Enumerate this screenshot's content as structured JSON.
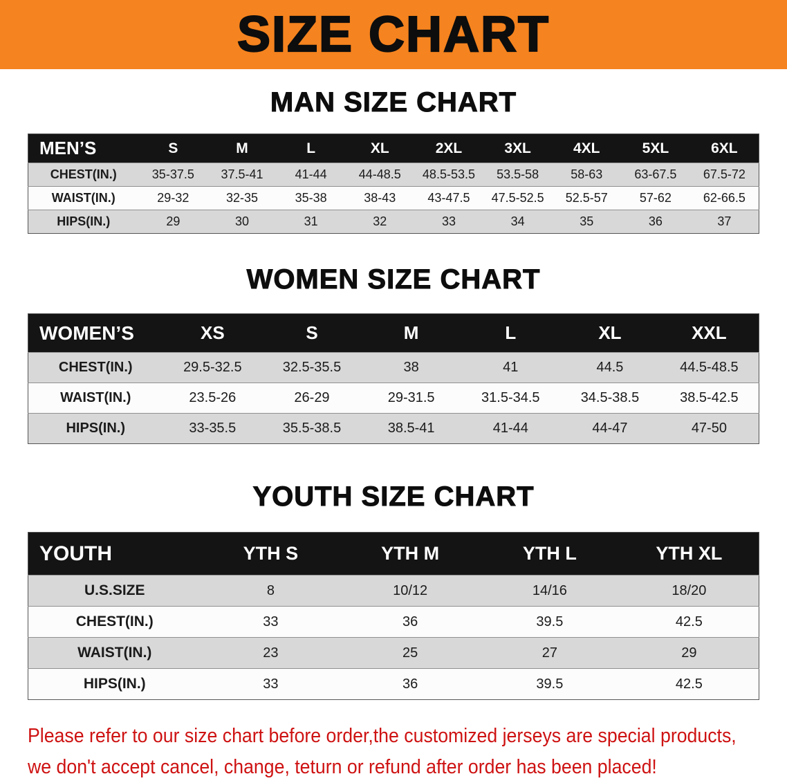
{
  "banner": {
    "title": "SIZE CHART"
  },
  "colors": {
    "banner_bg": "#F5831F",
    "table_header_bg": "#141414",
    "table_header_text": "#FFFFFF",
    "row_shaded_bg": "#D8D8D8",
    "row_plain_bg": "#FCFCFC",
    "heading_text": "#0D0D0D",
    "disclaimer_text": "#CE1212"
  },
  "sections": {
    "men": {
      "heading": "MAN SIZE CHART",
      "table": {
        "header": [
          "MEN’S",
          "S",
          "M",
          "L",
          "XL",
          "2XL",
          "3XL",
          "4XL",
          "5XL",
          "6XL"
        ],
        "rows": [
          [
            "CHEST(IN.)",
            "35-37.5",
            "37.5-41",
            "41-44",
            "44-48.5",
            "48.5-53.5",
            "53.5-58",
            "58-63",
            "63-67.5",
            "67.5-72"
          ],
          [
            "WAIST(IN.)",
            "29-32",
            "32-35",
            "35-38",
            "38-43",
            "43-47.5",
            "47.5-52.5",
            "52.5-57",
            "57-62",
            "62-66.5"
          ],
          [
            "HIPS(IN.)",
            "29",
            "30",
            "31",
            "32",
            "33",
            "34",
            "35",
            "36",
            "37"
          ]
        ]
      }
    },
    "women": {
      "heading": "WOMEN SIZE CHART",
      "table": {
        "header": [
          "WOMEN’S",
          "XS",
          "S",
          "M",
          "L",
          "XL",
          "XXL"
        ],
        "rows": [
          [
            "CHEST(IN.)",
            "29.5-32.5",
            "32.5-35.5",
            "38",
            "41",
            "44.5",
            "44.5-48.5"
          ],
          [
            "WAIST(IN.)",
            "23.5-26",
            "26-29",
            "29-31.5",
            "31.5-34.5",
            "34.5-38.5",
            "38.5-42.5"
          ],
          [
            "HIPS(IN.)",
            "33-35.5",
            "35.5-38.5",
            "38.5-41",
            "41-44",
            "44-47",
            "47-50"
          ]
        ]
      }
    },
    "youth": {
      "heading": "YOUTH SIZE CHART",
      "table": {
        "header": [
          "YOUTH",
          "YTH S",
          "YTH M",
          "YTH L",
          "YTH XL"
        ],
        "rows": [
          [
            "U.S.SIZE",
            "8",
            "10/12",
            "14/16",
            "18/20"
          ],
          [
            "CHEST(IN.)",
            "33",
            "36",
            "39.5",
            "42.5"
          ],
          [
            "WAIST(IN.)",
            "23",
            "25",
            "27",
            "29"
          ],
          [
            "HIPS(IN.)",
            "33",
            "36",
            "39.5",
            "42.5"
          ]
        ]
      }
    }
  },
  "disclaimer": {
    "line1": "Please refer to our size chart before order,the customized jerseys are special products,",
    "line2": "we don't accept cancel, change, teturn or refund after order has been placed!"
  }
}
